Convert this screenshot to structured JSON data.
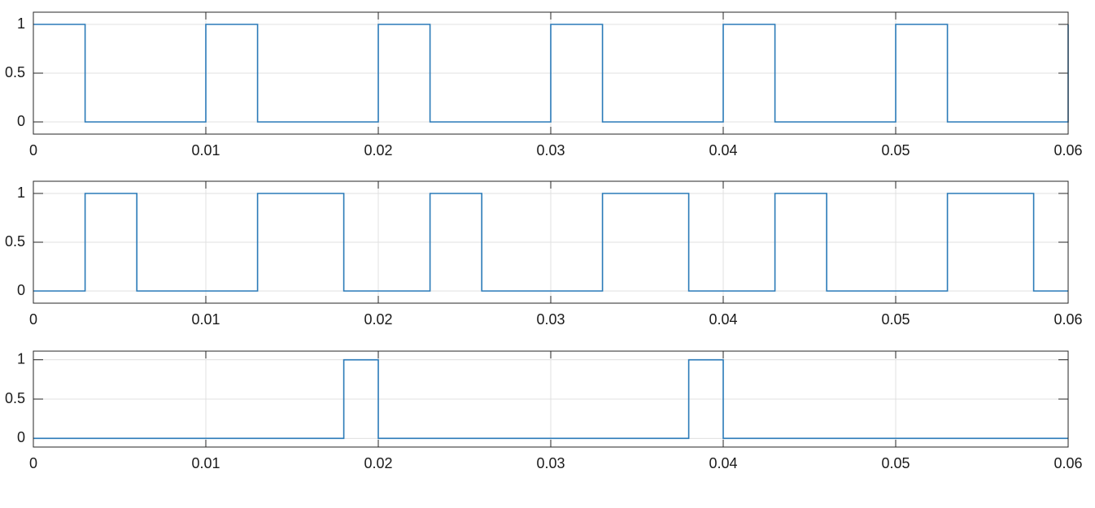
{
  "chart_data": [
    {
      "type": "line",
      "step": true,
      "color": "#2a7ab8",
      "grid": true,
      "x": [
        0,
        0.003,
        0.003,
        0.01,
        0.01,
        0.013,
        0.013,
        0.02,
        0.02,
        0.023,
        0.023,
        0.03,
        0.03,
        0.033,
        0.033,
        0.04,
        0.04,
        0.043,
        0.043,
        0.05,
        0.05,
        0.053,
        0.053,
        0.06,
        0.06
      ],
      "values": [
        1,
        1,
        0,
        0,
        1,
        1,
        0,
        0,
        1,
        1,
        0,
        0,
        1,
        1,
        0,
        0,
        1,
        1,
        0,
        0,
        1,
        1,
        0,
        0,
        1
      ],
      "xlim": [
        0,
        0.06
      ],
      "ylim": [
        -0.125,
        1.125
      ],
      "xticks": [
        0,
        0.01,
        0.02,
        0.03,
        0.04,
        0.05,
        0.06
      ],
      "yticks": [
        0,
        0.5,
        1
      ]
    },
    {
      "type": "line",
      "step": true,
      "color": "#2a7ab8",
      "grid": true,
      "x": [
        0,
        0.003,
        0.003,
        0.006,
        0.006,
        0.013,
        0.013,
        0.018,
        0.018,
        0.023,
        0.023,
        0.026,
        0.026,
        0.033,
        0.033,
        0.038,
        0.038,
        0.043,
        0.043,
        0.046,
        0.046,
        0.053,
        0.053,
        0.058,
        0.058,
        0.06
      ],
      "values": [
        0,
        0,
        1,
        1,
        0,
        0,
        1,
        1,
        0,
        0,
        1,
        1,
        0,
        0,
        1,
        1,
        0,
        0,
        1,
        1,
        0,
        0,
        1,
        1,
        0,
        0
      ],
      "xlim": [
        0,
        0.06
      ],
      "ylim": [
        -0.125,
        1.125
      ],
      "xticks": [
        0,
        0.01,
        0.02,
        0.03,
        0.04,
        0.05,
        0.06
      ],
      "yticks": [
        0,
        0.5,
        1
      ]
    },
    {
      "type": "line",
      "step": true,
      "color": "#2a7ab8",
      "grid": true,
      "x": [
        0,
        0.018,
        0.018,
        0.02,
        0.02,
        0.038,
        0.038,
        0.04,
        0.04,
        0.06
      ],
      "values": [
        0,
        0,
        1,
        1,
        0,
        0,
        1,
        1,
        0,
        0
      ],
      "xlim": [
        0,
        0.06
      ],
      "ylim": [
        -0.11,
        1.11
      ],
      "xticks": [
        0,
        0.01,
        0.02,
        0.03,
        0.04,
        0.05,
        0.06
      ],
      "yticks": [
        0,
        0.5,
        1
      ]
    }
  ]
}
